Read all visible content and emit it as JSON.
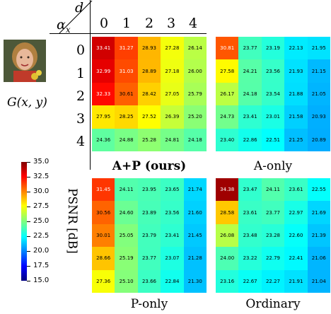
{
  "header": {
    "d_label": "d",
    "alpha_label": "α",
    "alpha_sub": "x",
    "columns": [
      "0",
      "1",
      "2",
      "3",
      "4"
    ],
    "rows": [
      "0",
      "1",
      "2",
      "3",
      "4"
    ]
  },
  "image_caption": "G(x, y)",
  "colorbar": {
    "label": "PSNR [dB]",
    "min": 15.0,
    "max": 35.0,
    "ticks": [
      "35.0",
      "32.5",
      "30.0",
      "27.5",
      "25.0",
      "22.5",
      "20.0",
      "17.5",
      "15.0"
    ]
  },
  "panels": [
    {
      "caption": "A+P (ours)",
      "values": [
        [
          "33.41",
          "31.27",
          "28.93",
          "27.28",
          "26.14"
        ],
        [
          "32.99",
          "31.03",
          "28.89",
          "27.18",
          "26.00"
        ],
        [
          "32.33",
          "30.61",
          "28.42",
          "27.05",
          "25.79"
        ],
        [
          "27.95",
          "28.25",
          "27.52",
          "26.39",
          "25.20"
        ],
        [
          "24.36",
          "24.88",
          "25.28",
          "24.81",
          "24.18"
        ]
      ]
    },
    {
      "caption": "A-only",
      "values": [
        [
          "30.81",
          "23.77",
          "23.19",
          "22.13",
          "21.95"
        ],
        [
          "27.58",
          "24.21",
          "23.56",
          "21.93",
          "21.15"
        ],
        [
          "26.17",
          "24.18",
          "23.54",
          "21.88",
          "21.05"
        ],
        [
          "24.73",
          "23.41",
          "23.01",
          "21.58",
          "20.93"
        ],
        [
          "23.40",
          "22.86",
          "22.51",
          "21.25",
          "20.89"
        ]
      ]
    },
    {
      "caption": "P-only",
      "values": [
        [
          "31.45",
          "24.11",
          "23.95",
          "23.65",
          "21.74"
        ],
        [
          "30.56",
          "24.60",
          "23.89",
          "23.56",
          "21.60"
        ],
        [
          "30.01",
          "25.05",
          "23.79",
          "23.41",
          "21.45"
        ],
        [
          "28.66",
          "25.19",
          "23.77",
          "23.07",
          "21.28"
        ],
        [
          "27.36",
          "25.10",
          "23.66",
          "22.84",
          "21.30"
        ]
      ]
    },
    {
      "caption": "Ordinary",
      "values": [
        [
          "34.38",
          "23.47",
          "24.11",
          "23.61",
          "22.55"
        ],
        [
          "28.58",
          "23.61",
          "23.77",
          "22.97",
          "21.69"
        ],
        [
          "26.08",
          "23.48",
          "23.28",
          "22.60",
          "21.39"
        ],
        [
          "24.00",
          "23.22",
          "22.79",
          "22.41",
          "21.06"
        ],
        [
          "23.16",
          "22.67",
          "22.27",
          "21.91",
          "21.04"
        ]
      ]
    }
  ]
}
